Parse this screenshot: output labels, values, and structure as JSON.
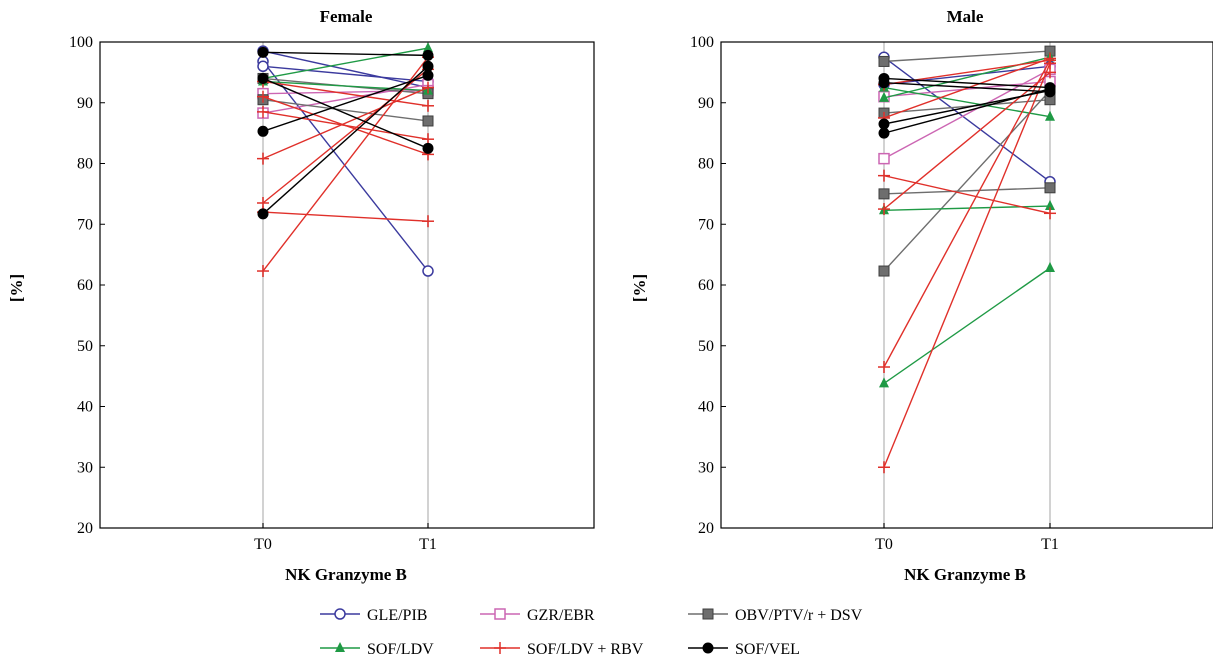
{
  "chart_data": {
    "type": "line",
    "legend_position": "bottom",
    "grid": true,
    "legend": [
      {
        "name": "GLE/PIB",
        "color": "#3b3a9e",
        "marker": "circle-open"
      },
      {
        "name": "GZR/EBR",
        "color": "#cc66b3",
        "marker": "square-open"
      },
      {
        "name": "OBV/PTV/r + DSV",
        "color": "#6e6e6e",
        "marker": "square-filled"
      },
      {
        "name": "SOF/LDV",
        "color": "#1f9a45",
        "marker": "triangle-filled"
      },
      {
        "name": "SOF/LDV + RBV",
        "color": "#e0302a",
        "marker": "plus"
      },
      {
        "name": "SOF/VEL",
        "color": "#000000",
        "marker": "circle-filled"
      }
    ],
    "panels": [
      {
        "title": "Female",
        "xlabel": "NK Granzyme B",
        "ylabel": "[%]",
        "categories": [
          "T0",
          "T1"
        ],
        "ylim": [
          20,
          100
        ],
        "yticks": [
          "100",
          "90",
          "80",
          "70",
          "60",
          "50",
          "40",
          "30",
          "20"
        ],
        "series": [
          {
            "group": "GLE/PIB",
            "values": [
              96.8,
              62.3
            ]
          },
          {
            "group": "GLE/PIB",
            "values": [
              96.0,
              93.5
            ]
          },
          {
            "group": "GLE/PIB",
            "values": [
              98.5,
              92.5
            ]
          },
          {
            "group": "GZR/EBR",
            "values": [
              88.3,
              93.0
            ]
          },
          {
            "group": "GZR/EBR",
            "values": [
              91.5,
              92.0
            ]
          },
          {
            "group": "OBV/PTV/r + DSV",
            "values": [
              90.5,
              87.0
            ]
          },
          {
            "group": "OBV/PTV/r + DSV",
            "values": [
              94.0,
              91.5
            ]
          },
          {
            "group": "SOF/LDV",
            "values": [
              94.0,
              99.0
            ]
          },
          {
            "group": "SOF/LDV",
            "values": [
              93.5,
              92.0
            ]
          },
          {
            "group": "SOF/LDV + RBV",
            "values": [
              62.3,
              97.5
            ]
          },
          {
            "group": "SOF/LDV + RBV",
            "values": [
              72.0,
              70.5
            ]
          },
          {
            "group": "SOF/LDV + RBV",
            "values": [
              73.5,
              95.5
            ]
          },
          {
            "group": "SOF/LDV + RBV",
            "values": [
              80.8,
              92.5
            ]
          },
          {
            "group": "SOF/LDV + RBV",
            "values": [
              88.5,
              84.0
            ]
          },
          {
            "group": "SOF/LDV + RBV",
            "values": [
              91.0,
              81.5
            ]
          },
          {
            "group": "SOF/LDV + RBV",
            "values": [
              93.5,
              89.5
            ]
          },
          {
            "group": "SOF/VEL",
            "values": [
              98.3,
              97.8
            ]
          },
          {
            "group": "SOF/VEL",
            "values": [
              94.0,
              82.5
            ]
          },
          {
            "group": "SOF/VEL",
            "values": [
              85.3,
              94.5
            ]
          },
          {
            "group": "SOF/VEL",
            "values": [
              71.7,
              96.0
            ]
          }
        ]
      },
      {
        "title": "Male",
        "xlabel": "NK Granzyme B",
        "ylabel": "[%]",
        "categories": [
          "T0",
          "T1"
        ],
        "ylim": [
          20,
          100
        ],
        "yticks": [
          "100",
          "90",
          "80",
          "70",
          "60",
          "50",
          "40",
          "30",
          "20"
        ],
        "series": [
          {
            "group": "GLE/PIB",
            "values": [
              97.5,
              77.0
            ]
          },
          {
            "group": "GLE/PIB",
            "values": [
              93.0,
              96.0
            ]
          },
          {
            "group": "GZR/EBR",
            "values": [
              80.8,
              95.5
            ]
          },
          {
            "group": "GZR/EBR",
            "values": [
              91.0,
              93.5
            ]
          },
          {
            "group": "OBV/PTV/r + DSV",
            "values": [
              96.8,
              98.5
            ]
          },
          {
            "group": "OBV/PTV/r + DSV",
            "values": [
              75.0,
              76.0
            ]
          },
          {
            "group": "OBV/PTV/r + DSV",
            "values": [
              62.3,
              92.0
            ]
          },
          {
            "group": "OBV/PTV/r + DSV",
            "values": [
              88.3,
              90.5
            ]
          },
          {
            "group": "SOF/LDV",
            "values": [
              72.3,
              73.0
            ]
          },
          {
            "group": "SOF/LDV",
            "values": [
              43.8,
              62.8
            ]
          },
          {
            "group": "SOF/LDV",
            "values": [
              92.5,
              87.7
            ]
          },
          {
            "group": "SOF/LDV",
            "values": [
              90.8,
              97.5
            ]
          },
          {
            "group": "SOF/LDV + RBV",
            "values": [
              30.0,
              96.5
            ]
          },
          {
            "group": "SOF/LDV + RBV",
            "values": [
              46.5,
              97.0
            ]
          },
          {
            "group": "SOF/LDV + RBV",
            "values": [
              72.5,
              95.0
            ]
          },
          {
            "group": "SOF/LDV + RBV",
            "values": [
              78.0,
              71.8
            ]
          },
          {
            "group": "SOF/LDV + RBV",
            "values": [
              87.5,
              97.3
            ]
          },
          {
            "group": "SOF/LDV + RBV",
            "values": [
              93.0,
              97.0
            ]
          },
          {
            "group": "SOF/VEL",
            "values": [
              94.0,
              92.5
            ]
          },
          {
            "group": "SOF/VEL",
            "values": [
              86.5,
              92.0
            ]
          },
          {
            "group": "SOF/VEL",
            "values": [
              85.0,
              92.3
            ]
          },
          {
            "group": "SOF/VEL",
            "values": [
              93.3,
              91.8
            ]
          }
        ]
      }
    ]
  }
}
